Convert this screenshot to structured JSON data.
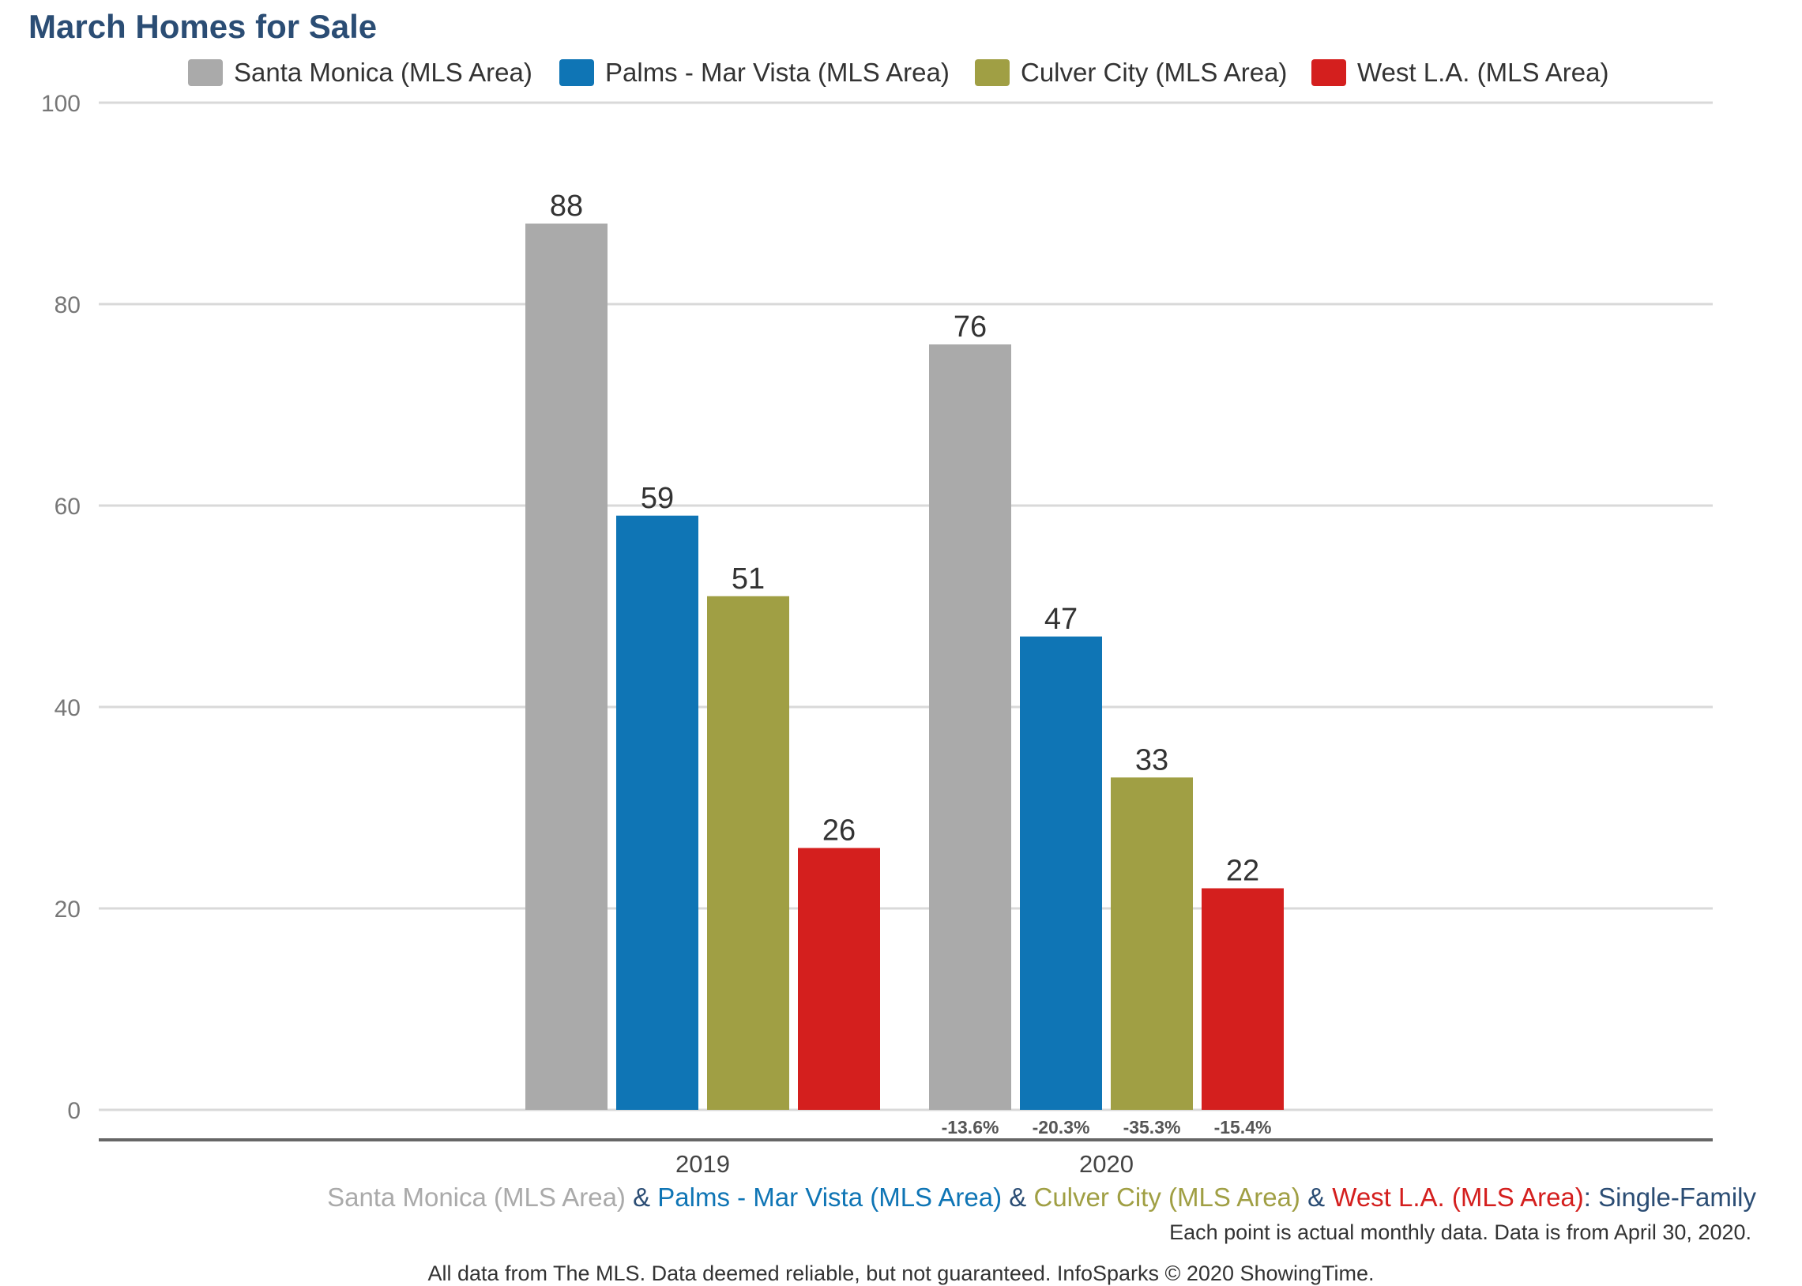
{
  "chart_data": {
    "type": "bar",
    "title": "March Homes for Sale",
    "categories": [
      "2019",
      "2020"
    ],
    "series": [
      {
        "name": "Santa Monica (MLS Area)",
        "color": "#aaaaaa",
        "values": [
          88,
          76
        ],
        "changes": [
          "",
          "-13.6%"
        ]
      },
      {
        "name": "Palms - Mar Vista (MLS Area)",
        "color": "#0f75b5",
        "values": [
          59,
          47
        ],
        "changes": [
          "",
          "-20.3%"
        ]
      },
      {
        "name": "Culver City (MLS Area)",
        "color": "#a09f44",
        "values": [
          51,
          33
        ],
        "changes": [
          "",
          "-35.3%"
        ]
      },
      {
        "name": "West L.A. (MLS Area)",
        "color": "#d41f1e",
        "values": [
          26,
          22
        ],
        "changes": [
          "",
          "-15.4%"
        ]
      }
    ],
    "ylim": [
      0,
      100
    ],
    "yticks": [
      0,
      20,
      40,
      60,
      80,
      100
    ],
    "grid": true,
    "legend": "top"
  },
  "caption": {
    "parts": [
      {
        "text": "Santa Monica (MLS Area)",
        "color": "#aaaaaa"
      },
      {
        "text": " & ",
        "color": "#2b4d74"
      },
      {
        "text": "Palms - Mar Vista (MLS Area)",
        "color": "#0f75b5"
      },
      {
        "text": " & ",
        "color": "#2b4d74"
      },
      {
        "text": "Culver City (MLS Area)",
        "color": "#a09f44"
      },
      {
        "text": " & ",
        "color": "#2b4d74"
      },
      {
        "text": "West L.A. (MLS Area)",
        "color": "#d41f1e"
      },
      {
        "text": ": Single-Family",
        "color": "#2b4d74"
      }
    ]
  },
  "note": "Each point is actual monthly data. Data is from April 30, 2020.",
  "footer": "All data from The MLS. Data deemed reliable, but not guaranteed. InfoSparks © 2020 ShowingTime."
}
